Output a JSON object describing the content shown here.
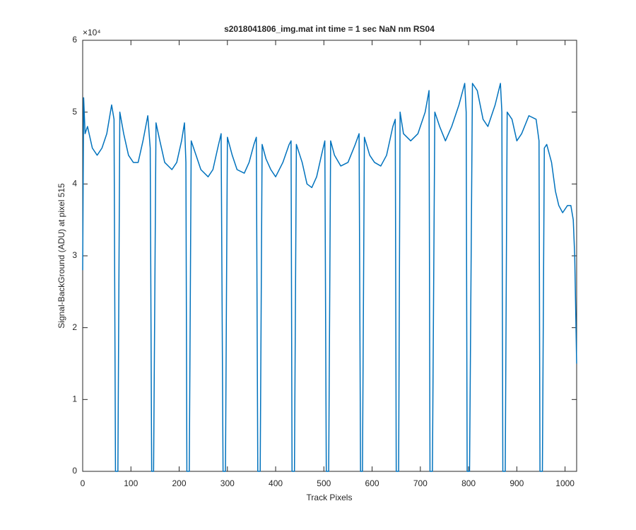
{
  "chart_data": {
    "type": "line",
    "title": "s2018041806_img.mat int time = 1 sec  NaN nm RS04",
    "x_label": "Track Pixels",
    "y_label": "Signal-BackGround (ADU) at pixel 515",
    "y_multiplier": "×10⁴",
    "xlim": [
      0,
      1024
    ],
    "xticks": [
      0,
      100,
      200,
      300,
      400,
      500,
      600,
      700,
      800,
      900,
      1000
    ],
    "ylim": [
      0,
      6
    ],
    "yticks": [
      0,
      1,
      2,
      3,
      4,
      5,
      6
    ],
    "grid": false,
    "series": [
      {
        "name": "signal",
        "color": "#0072BD",
        "x": [
          0,
          2,
          5,
          10,
          20,
          30,
          40,
          50,
          60,
          65,
          68,
          73,
          77,
          85,
          95,
          105,
          115,
          125,
          135,
          140,
          143,
          147,
          152,
          160,
          170,
          185,
          195,
          205,
          211,
          214,
          216,
          221,
          225,
          235,
          245,
          260,
          270,
          280,
          287,
          291,
          296,
          300,
          310,
          320,
          335,
          345,
          355,
          360,
          363,
          368,
          372,
          380,
          390,
          400,
          415,
          428,
          432,
          434,
          439,
          443,
          455,
          465,
          475,
          485,
          495,
          502,
          505,
          510,
          514,
          522,
          535,
          550,
          565,
          573,
          576,
          580,
          584,
          595,
          605,
          618,
          630,
          643,
          648,
          650,
          655,
          658,
          665,
          680,
          695,
          710,
          718,
          720,
          725,
          730,
          740,
          752,
          765,
          780,
          792,
          795,
          797,
          802,
          808,
          818,
          830,
          840,
          855,
          866,
          869,
          871,
          876,
          880,
          890,
          900,
          910,
          925,
          940,
          946,
          948,
          953,
          957,
          962,
          972,
          980,
          987,
          995,
          1005,
          1012,
          1017,
          1020,
          1024
        ],
        "values": [
          2.8,
          5.2,
          4.7,
          4.8,
          4.5,
          4.4,
          4.5,
          4.7,
          5.1,
          4.9,
          0,
          0,
          5.0,
          4.7,
          4.4,
          4.3,
          4.3,
          4.6,
          4.95,
          4.5,
          0,
          0,
          4.85,
          4.6,
          4.3,
          4.2,
          4.3,
          4.6,
          4.85,
          4.3,
          0,
          0,
          4.6,
          4.4,
          4.2,
          4.1,
          4.2,
          4.5,
          4.7,
          0,
          0,
          4.65,
          4.4,
          4.2,
          4.15,
          4.3,
          4.55,
          4.65,
          0,
          0,
          4.55,
          4.35,
          4.2,
          4.1,
          4.3,
          4.55,
          4.6,
          0,
          0,
          4.55,
          4.3,
          4.0,
          3.95,
          4.1,
          4.4,
          4.6,
          0,
          0,
          4.6,
          4.4,
          4.25,
          4.3,
          4.55,
          4.7,
          0,
          0,
          4.65,
          4.4,
          4.3,
          4.25,
          4.4,
          4.8,
          4.9,
          0,
          0,
          5.0,
          4.7,
          4.6,
          4.7,
          5.0,
          5.3,
          0,
          0,
          5.0,
          4.8,
          4.6,
          4.8,
          5.1,
          5.4,
          5.0,
          0,
          0,
          5.4,
          5.3,
          4.9,
          4.8,
          5.1,
          5.4,
          5.0,
          0,
          0,
          5.0,
          4.9,
          4.6,
          4.7,
          4.95,
          4.9,
          4.6,
          0,
          0,
          4.5,
          4.55,
          4.3,
          3.9,
          3.7,
          3.6,
          3.7,
          3.7,
          3.5,
          3.0,
          1.5
        ]
      }
    ]
  }
}
